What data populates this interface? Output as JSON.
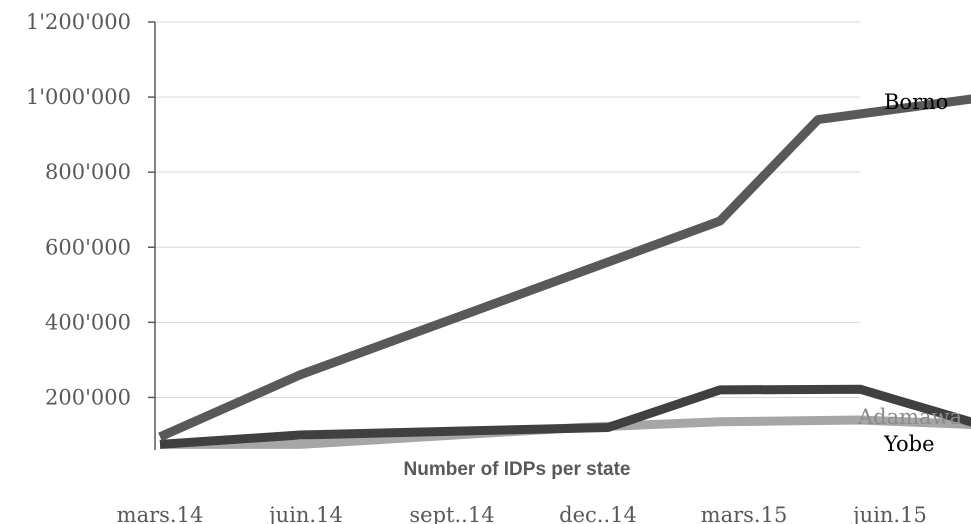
{
  "chart_data": {
    "type": "line",
    "title": "",
    "xlabel": "Number of IDPs per state",
    "ylabel": "",
    "categories": [
      "mars.14",
      "juin.14",
      "sept..14",
      "dec..14",
      "mars.15",
      "juin.15"
    ],
    "y_ticks": [
      "200'000",
      "400'000",
      "600'000",
      "800'000",
      "1'000'000",
      "1'200'000"
    ],
    "y_tick_values": [
      200000,
      400000,
      600000,
      800000,
      1000000,
      1200000
    ],
    "ylim": [
      60000,
      1200000
    ],
    "grid": true,
    "legend": "labels at line ends",
    "series": [
      {
        "name": "Borno",
        "color": "#595959",
        "label_color": "#000000",
        "points": [
          [
            0,
            95000
          ],
          [
            1,
            260000
          ],
          [
            4,
            670000
          ],
          [
            4.7,
            940000
          ],
          [
            6,
            1005000
          ]
        ]
      },
      {
        "name": "Yobe",
        "color": "#404040",
        "label_color": "#000000",
        "points": [
          [
            0,
            75000
          ],
          [
            1,
            100000
          ],
          [
            3.2,
            120000
          ],
          [
            4,
            220000
          ],
          [
            5,
            222000
          ],
          [
            6,
            112000
          ]
        ]
      },
      {
        "name": "Adamawa",
        "color": "#a6a6a6",
        "label_color": "#8c8c8c",
        "points": [
          [
            0,
            75000
          ],
          [
            1,
            75000
          ],
          [
            3,
            120000
          ],
          [
            4,
            135000
          ],
          [
            5,
            140000
          ],
          [
            6,
            125000
          ]
        ]
      }
    ]
  }
}
